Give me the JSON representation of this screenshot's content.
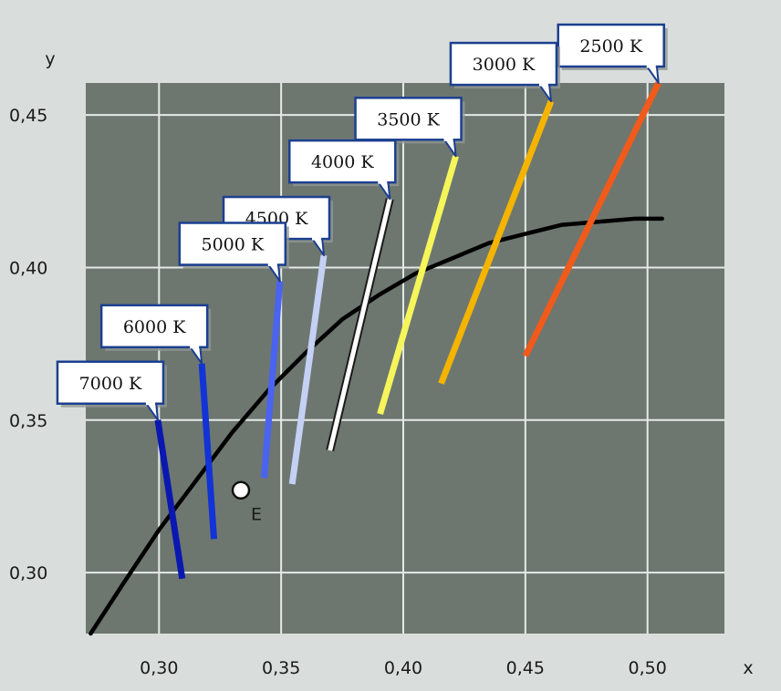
{
  "chart_data": {
    "type": "line",
    "xlabel": "x",
    "ylabel": "y",
    "xlim": [
      0.27,
      0.5315
    ],
    "ylim": [
      0.28,
      0.4605
    ],
    "grid": true,
    "x_ticks": [
      0.3,
      0.35,
      0.4,
      0.45,
      0.5
    ],
    "y_ticks": [
      0.3,
      0.35,
      0.4,
      0.45
    ],
    "x_tick_labels": [
      "0,30",
      "0,35",
      "0,40",
      "0,45",
      "0,50"
    ],
    "y_tick_labels": [
      "0,30",
      "0,35",
      "0,40",
      "0,45"
    ],
    "planckian_locus": {
      "color": "#000000",
      "points": [
        [
          0.272,
          0.28
        ],
        [
          0.285,
          0.296
        ],
        [
          0.3,
          0.314
        ],
        [
          0.315,
          0.33
        ],
        [
          0.33,
          0.346
        ],
        [
          0.345,
          0.36
        ],
        [
          0.36,
          0.372
        ],
        [
          0.375,
          0.383
        ],
        [
          0.39,
          0.391
        ],
        [
          0.405,
          0.398
        ],
        [
          0.42,
          0.403
        ],
        [
          0.435,
          0.408
        ],
        [
          0.45,
          0.411
        ],
        [
          0.465,
          0.414
        ],
        [
          0.48,
          0.415
        ],
        [
          0.495,
          0.416
        ],
        [
          0.506,
          0.416
        ]
      ]
    },
    "isotherms": [
      {
        "label": "2500 K",
        "color": "#f05a1a",
        "from": [
          0.45,
          0.371
        ],
        "to": [
          0.5045,
          0.4605
        ]
      },
      {
        "label": "3000 K",
        "color": "#f4b400",
        "from": [
          0.4155,
          0.362
        ],
        "to": [
          0.4605,
          0.4545
        ]
      },
      {
        "label": "3500 K",
        "color": "#f6f55a",
        "from": [
          0.3905,
          0.352
        ],
        "to": [
          0.4215,
          0.4365
        ]
      },
      {
        "label": "4000 K",
        "color": "#ffffff",
        "from": [
          0.37,
          0.34
        ],
        "to": [
          0.3945,
          0.4225
        ]
      },
      {
        "label": "4500 K",
        "color": "#c5d0f5",
        "from": [
          0.3545,
          0.329
        ],
        "to": [
          0.3675,
          0.404
        ]
      },
      {
        "label": "5000 K",
        "color": "#4a63f0",
        "from": [
          0.343,
          0.331
        ],
        "to": [
          0.3495,
          0.3955
        ]
      },
      {
        "label": "6000 K",
        "color": "#1233d6",
        "from": [
          0.3225,
          0.311
        ],
        "to": [
          0.3175,
          0.3685
        ]
      },
      {
        "label": "7000 K",
        "color": "#0a18b0",
        "from": [
          0.3095,
          0.298
        ],
        "to": [
          0.2995,
          0.35
        ]
      }
    ],
    "points": [
      {
        "label": "E",
        "x": 0.3335,
        "y": 0.327
      }
    ]
  }
}
